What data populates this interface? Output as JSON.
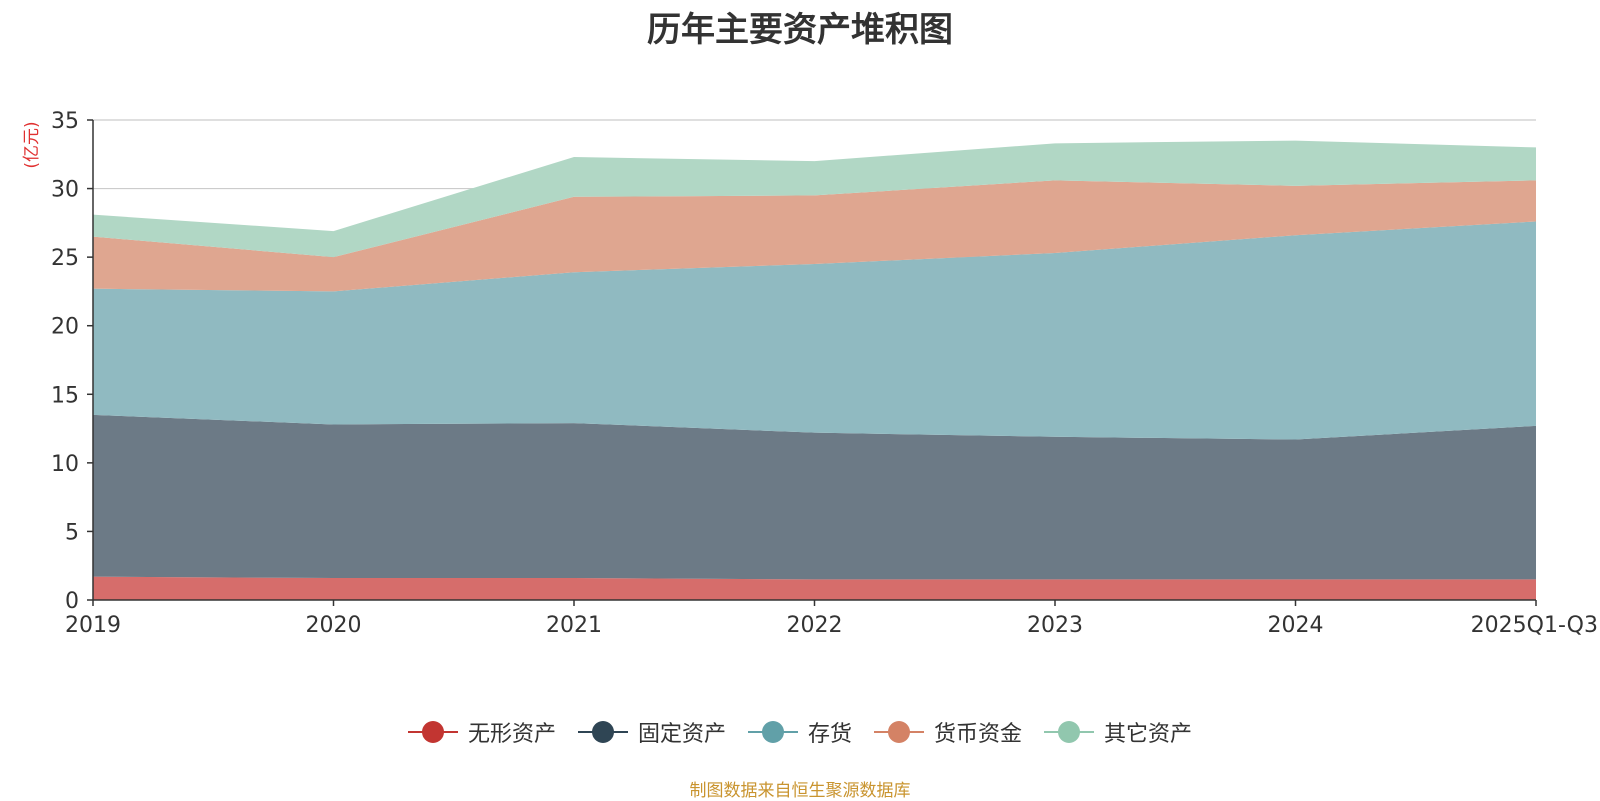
{
  "chart_data": {
    "type": "area",
    "stacked": true,
    "title": "历年主要资产堆积图",
    "ylabel": "(亿元)",
    "xlabel": "",
    "categories": [
      "2019",
      "2020",
      "2021",
      "2022",
      "2023",
      "2024",
      "2025Q1-Q3"
    ],
    "ylim": [
      0,
      35
    ],
    "yticks": [
      0,
      5,
      10,
      15,
      20,
      25,
      30,
      35
    ],
    "grid": true,
    "legend_position": "bottom-center",
    "series": [
      {
        "name": "无形资产",
        "values": [
          1.7,
          1.6,
          1.6,
          1.5,
          1.5,
          1.5,
          1.5
        ],
        "color": "#c23531",
        "fill": "#d66d6b"
      },
      {
        "name": "固定资产",
        "values": [
          11.8,
          11.2,
          11.3,
          10.7,
          10.4,
          10.2,
          11.2
        ],
        "color": "#2f4554",
        "fill": "#6c7a86"
      },
      {
        "name": "存货",
        "values": [
          9.2,
          9.7,
          11.0,
          12.3,
          13.4,
          14.9,
          14.9
        ],
        "color": "#61a0a8",
        "fill": "#90bac1"
      },
      {
        "name": "货币资金",
        "values": [
          3.8,
          2.5,
          5.5,
          5.0,
          5.3,
          3.6,
          3.0
        ],
        "color": "#d48265",
        "fill": "#dfa690"
      },
      {
        "name": "其它资产",
        "values": [
          1.6,
          1.9,
          2.9,
          2.5,
          2.7,
          3.3,
          2.4
        ],
        "color": "#91c7ae",
        "fill": "#b1d7c5"
      }
    ]
  },
  "source_note": "制图数据来自恒生聚源数据库"
}
